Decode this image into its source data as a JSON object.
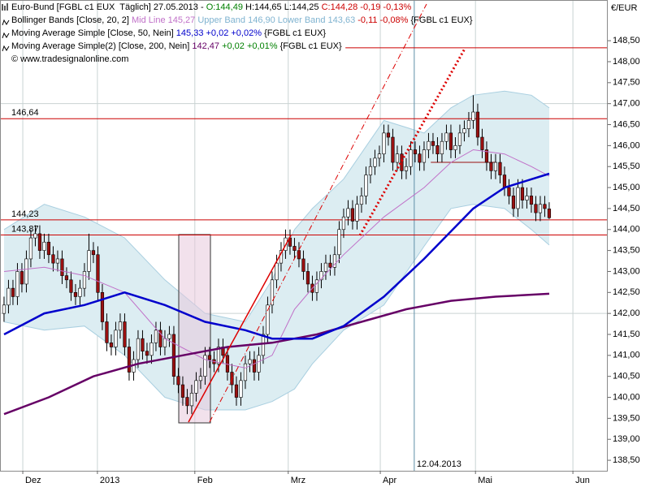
{
  "chart_data": {
    "type": "candlestick",
    "unit_label": "€/EUR",
    "xlim": [
      -0.9,
      135.1
    ],
    "ylim": [
      138.25,
      149.47
    ],
    "xticks": [
      {
        "value": 4.2,
        "label": "Dez"
      },
      {
        "value": 20.9,
        "label": "2013"
      },
      {
        "value": 42.7,
        "label": "Feb"
      },
      {
        "value": 63.6,
        "label": "Mrz"
      },
      {
        "value": 84.2,
        "label": "Apr"
      },
      {
        "value": 105.5,
        "label": "Mai"
      },
      {
        "value": 127.3,
        "label": "Jun"
      }
    ],
    "yticks": [
      {
        "value": 138.5,
        "label": "138,50"
      },
      {
        "value": 139,
        "label": "139,00"
      },
      {
        "value": 139.5,
        "label": "139,50"
      },
      {
        "value": 140,
        "label": "140,00"
      },
      {
        "value": 140.5,
        "label": "140,50"
      },
      {
        "value": 141,
        "label": "141,00"
      },
      {
        "value": 141.5,
        "label": "141,50"
      },
      {
        "value": 142,
        "label": "142,00"
      },
      {
        "value": 142.5,
        "label": "142,50"
      },
      {
        "value": 143,
        "label": "143,00"
      },
      {
        "value": 143.5,
        "label": "143,50"
      },
      {
        "value": 144,
        "label": "144,00"
      },
      {
        "value": 144.5,
        "label": "144,50"
      },
      {
        "value": 145,
        "label": "145,00"
      },
      {
        "value": 145.5,
        "label": "145,50"
      },
      {
        "value": 146,
        "label": "146,00"
      },
      {
        "value": 146.5,
        "label": "146,50"
      },
      {
        "value": 147,
        "label": "147,00"
      },
      {
        "value": 147.5,
        "label": "147,50"
      },
      {
        "value": 148,
        "label": "148,00"
      },
      {
        "value": 148.5,
        "label": "148,50"
      }
    ],
    "ygrid": [
      142,
      147
    ],
    "up_color": "#ffffff",
    "down_color": "#9a1010",
    "ohlc": [
      [
        142.0,
        142.4,
        141.8,
        142.2
      ],
      [
        142.2,
        142.8,
        142.0,
        142.6
      ],
      [
        142.6,
        142.8,
        142.2,
        142.4
      ],
      [
        142.4,
        143.2,
        142.2,
        143.0
      ],
      [
        143.0,
        143.2,
        142.5,
        142.7
      ],
      [
        142.7,
        143.5,
        142.5,
        143.3
      ],
      [
        143.3,
        144.0,
        143.1,
        143.8
      ],
      [
        143.8,
        144.1,
        143.6,
        143.9
      ],
      [
        143.9,
        144.1,
        143.3,
        143.5
      ],
      [
        143.5,
        143.9,
        143.3,
        143.7
      ],
      [
        143.7,
        143.9,
        143.2,
        143.4
      ],
      [
        143.4,
        143.6,
        143.0,
        143.2
      ],
      [
        143.2,
        143.5,
        143.0,
        143.3
      ],
      [
        143.3,
        143.5,
        142.7,
        142.9
      ],
      [
        142.9,
        143.1,
        142.6,
        142.8
      ],
      [
        142.8,
        143.0,
        142.3,
        142.5
      ],
      [
        142.5,
        142.7,
        142.2,
        142.4
      ],
      [
        142.4,
        142.8,
        142.2,
        142.6
      ],
      [
        142.6,
        143.2,
        142.4,
        143.0
      ],
      [
        143.0,
        143.9,
        142.8,
        143.5
      ],
      [
        143.5,
        143.7,
        143.2,
        143.4
      ],
      [
        143.4,
        143.6,
        142.3,
        142.5
      ],
      [
        142.5,
        142.7,
        141.6,
        141.8
      ],
      [
        141.8,
        142.0,
        141.1,
        141.3
      ],
      [
        141.3,
        141.5,
        141.0,
        141.2
      ],
      [
        141.2,
        141.8,
        141.0,
        141.6
      ],
      [
        141.6,
        142.0,
        141.4,
        141.8
      ],
      [
        141.8,
        142.0,
        141.0,
        141.2
      ],
      [
        141.2,
        141.4,
        140.4,
        140.6
      ],
      [
        140.6,
        141.1,
        140.4,
        140.9
      ],
      [
        140.9,
        141.6,
        140.7,
        141.4
      ],
      [
        141.4,
        141.6,
        140.9,
        141.1
      ],
      [
        141.1,
        141.3,
        140.8,
        141.0
      ],
      [
        141.0,
        141.5,
        140.8,
        141.3
      ],
      [
        141.3,
        141.8,
        141.1,
        141.6
      ],
      [
        141.6,
        141.8,
        141.0,
        141.2
      ],
      [
        141.2,
        141.6,
        141.0,
        141.4
      ],
      [
        141.4,
        141.7,
        141.2,
        141.5
      ],
      [
        141.5,
        141.7,
        140.3,
        140.5
      ],
      [
        140.5,
        140.7,
        140.1,
        140.3
      ],
      [
        140.3,
        140.5,
        139.8,
        140.0
      ],
      [
        140.0,
        140.2,
        139.6,
        139.8
      ],
      [
        139.8,
        140.3,
        139.6,
        140.1
      ],
      [
        140.1,
        140.6,
        139.9,
        140.4
      ],
      [
        140.4,
        140.7,
        140.2,
        140.5
      ],
      [
        140.5,
        141.2,
        140.3,
        141.0
      ],
      [
        141.0,
        141.2,
        140.7,
        140.9
      ],
      [
        140.9,
        141.1,
        140.6,
        140.8
      ],
      [
        140.8,
        141.4,
        140.6,
        141.2
      ],
      [
        141.2,
        141.4,
        140.8,
        141.0
      ],
      [
        141.0,
        141.2,
        140.4,
        140.6
      ],
      [
        140.6,
        140.8,
        140.1,
        140.3
      ],
      [
        140.3,
        140.5,
        139.8,
        140.0
      ],
      [
        140.0,
        140.6,
        139.8,
        140.4
      ],
      [
        140.4,
        141.0,
        140.2,
        140.8
      ],
      [
        140.8,
        141.1,
        140.6,
        140.9
      ],
      [
        140.9,
        141.1,
        140.4,
        140.6
      ],
      [
        140.6,
        141.2,
        140.4,
        141.0
      ],
      [
        141.0,
        141.7,
        140.8,
        141.5
      ],
      [
        141.5,
        142.4,
        141.3,
        142.2
      ],
      [
        142.2,
        143.0,
        142.0,
        142.8
      ],
      [
        142.8,
        143.4,
        142.6,
        143.2
      ],
      [
        143.2,
        143.7,
        143.0,
        143.5
      ],
      [
        143.5,
        144.0,
        143.3,
        143.8
      ],
      [
        143.8,
        144.0,
        143.4,
        143.6
      ],
      [
        143.6,
        143.8,
        143.3,
        143.5
      ],
      [
        143.5,
        143.7,
        143.1,
        143.3
      ],
      [
        143.3,
        143.5,
        142.8,
        143.0
      ],
      [
        143.0,
        143.2,
        142.5,
        142.7
      ],
      [
        142.7,
        142.9,
        142.3,
        142.5
      ],
      [
        142.5,
        143.0,
        142.3,
        142.8
      ],
      [
        142.8,
        143.2,
        142.6,
        143.0
      ],
      [
        143.0,
        143.4,
        142.8,
        143.2
      ],
      [
        143.2,
        143.4,
        142.9,
        143.1
      ],
      [
        143.1,
        143.6,
        142.9,
        143.4
      ],
      [
        143.4,
        144.2,
        143.2,
        144.0
      ],
      [
        144.0,
        144.5,
        143.8,
        144.3
      ],
      [
        144.3,
        144.7,
        144.1,
        144.5
      ],
      [
        144.5,
        144.7,
        144.0,
        144.2
      ],
      [
        144.2,
        144.8,
        144.0,
        144.6
      ],
      [
        144.6,
        145.0,
        144.4,
        144.8
      ],
      [
        144.8,
        145.5,
        144.6,
        145.3
      ],
      [
        145.3,
        145.7,
        145.1,
        145.5
      ],
      [
        145.5,
        145.9,
        145.3,
        145.7
      ],
      [
        145.7,
        146.0,
        145.5,
        145.8
      ],
      [
        145.8,
        146.5,
        145.6,
        146.3
      ],
      [
        146.3,
        146.5,
        146.0,
        146.2
      ],
      [
        146.2,
        146.4,
        145.4,
        145.6
      ],
      [
        145.6,
        146.0,
        145.4,
        145.8
      ],
      [
        145.8,
        146.0,
        145.2,
        145.4
      ],
      [
        145.4,
        145.7,
        145.2,
        145.5
      ],
      [
        145.5,
        146.1,
        145.3,
        145.9
      ],
      [
        145.9,
        146.1,
        145.6,
        145.8
      ],
      [
        145.8,
        146.0,
        145.4,
        145.6
      ],
      [
        145.6,
        146.1,
        145.4,
        145.9
      ],
      [
        145.9,
        146.3,
        145.7,
        146.1
      ],
      [
        146.1,
        146.3,
        145.8,
        146.0
      ],
      [
        146.0,
        146.2,
        145.6,
        145.8
      ],
      [
        145.8,
        146.3,
        145.6,
        146.1
      ],
      [
        146.1,
        146.5,
        145.9,
        146.3
      ],
      [
        146.3,
        146.5,
        145.7,
        145.9
      ],
      [
        145.9,
        146.2,
        145.7,
        146.0
      ],
      [
        146.0,
        146.5,
        145.8,
        146.3
      ],
      [
        146.3,
        146.6,
        146.1,
        146.4
      ],
      [
        146.4,
        146.8,
        146.2,
        146.6
      ],
      [
        146.6,
        147.2,
        146.4,
        146.8
      ],
      [
        146.8,
        147.0,
        146.0,
        146.2
      ],
      [
        146.2,
        146.4,
        145.7,
        145.9
      ],
      [
        145.9,
        146.1,
        145.4,
        145.6
      ],
      [
        145.6,
        145.8,
        145.2,
        145.4
      ],
      [
        145.4,
        145.8,
        145.2,
        145.6
      ],
      [
        145.6,
        145.8,
        145.1,
        145.3
      ],
      [
        145.3,
        145.5,
        144.8,
        145.0
      ],
      [
        145.0,
        145.2,
        144.6,
        144.8
      ],
      [
        144.8,
        145.0,
        144.3,
        144.5
      ],
      [
        144.5,
        145.2,
        144.3,
        145.0
      ],
      [
        145.0,
        145.2,
        144.5,
        144.7
      ],
      [
        144.7,
        145.0,
        144.5,
        144.8
      ],
      [
        144.8,
        145.0,
        144.4,
        144.6
      ],
      [
        144.6,
        144.8,
        144.2,
        144.4
      ],
      [
        144.4,
        144.8,
        144.2,
        144.6
      ],
      [
        144.6,
        144.8,
        144.3,
        144.5
      ],
      [
        144.49,
        144.65,
        144.25,
        144.28
      ]
    ],
    "band": {
      "fill": "#dcedf2",
      "edge": "#a9cfe0",
      "mid_color": "#c070c8",
      "x": [
        0,
        9,
        18,
        27,
        36,
        45,
        54,
        60,
        65,
        69,
        76,
        85,
        94,
        100,
        105,
        112,
        118,
        122
      ],
      "upper": [
        144.0,
        144.6,
        144.3,
        143.8,
        142.8,
        142.0,
        141.8,
        142.8,
        144.0,
        144.5,
        145.2,
        146.6,
        146.3,
        146.9,
        147.2,
        147.3,
        147.2,
        146.9
      ],
      "mid": [
        143.0,
        143.1,
        142.9,
        142.5,
        141.4,
        140.9,
        140.7,
        141.0,
        142.1,
        142.6,
        143.4,
        144.3,
        145.0,
        145.6,
        145.9,
        145.8,
        145.5,
        145.27
      ],
      "lower": [
        141.8,
        141.6,
        141.7,
        141.0,
        140.0,
        139.7,
        139.7,
        139.9,
        140.2,
        140.8,
        141.6,
        142.2,
        143.6,
        144.5,
        144.6,
        144.5,
        144.0,
        143.63
      ]
    },
    "indicators": [
      {
        "color": "#660066",
        "width": 2.5,
        "x": [
          0,
          10,
          20,
          30,
          40,
          50,
          60,
          70,
          80,
          90,
          100,
          110,
          122
        ],
        "values": [
          139.6,
          140.0,
          140.5,
          140.8,
          141.0,
          141.2,
          141.3,
          141.5,
          141.8,
          142.1,
          142.3,
          142.4,
          142.47
        ]
      },
      {
        "color": "#0000cc",
        "width": 2.5,
        "x": [
          0,
          9,
          18,
          27,
          36,
          45,
          54,
          60,
          69,
          76,
          85,
          94,
          105,
          112,
          122
        ],
        "values": [
          141.5,
          142.0,
          142.2,
          142.5,
          142.2,
          141.8,
          141.6,
          141.4,
          141.4,
          141.7,
          142.4,
          143.3,
          144.5,
          145.0,
          145.33
        ]
      }
    ],
    "hlines": [
      {
        "value": 146.64,
        "label": "146,64"
      },
      {
        "value": 144.23,
        "label": "144,23"
      },
      {
        "value": 143.87,
        "label": "143,87"
      }
    ],
    "hline_color": "#cc0000",
    "segments": [
      {
        "y": 148.33,
        "x": [
          76.4,
          135.1
        ],
        "color": "#cc0000"
      },
      {
        "y": 145.6,
        "x": [
          95.5,
          110
        ],
        "color": "#9a1010"
      }
    ],
    "vmarker": {
      "x": 91.8,
      "label": "12.04.2013",
      "color": "#5f8fa8"
    },
    "header": [
      [
        {
          "text": "Euro-Bund [FGBL c1 EUX  Täglich] 27.05.2013 - ",
          "color": "#000000"
        },
        {
          "text": "O:144,49",
          "color": "#008000"
        },
        {
          "text": " H:144,65 L:144,25 ",
          "color": "#000000"
        },
        {
          "text": "C:144,28 -0,19 -0,13%",
          "color": "#cc0000"
        }
      ],
      [
        {
          "text": "Bollinger Bands [Close, 20, 2] ",
          "color": "#000000"
        },
        {
          "text": "Mid Line 145,27 ",
          "color": "#c070c8"
        },
        {
          "text": "Upper Band 146,90 ",
          "color": "#7fb3d0"
        },
        {
          "text": "Lower Band 143,63 ",
          "color": "#7fb3d0"
        },
        {
          "text": "-0,11 -0,08% ",
          "color": "#cc0000"
        },
        {
          "text": "{FGBL c1 EUX}",
          "color": "#000000"
        }
      ],
      [
        {
          "text": "Moving Average Simple [Close, 50, Nein] ",
          "color": "#000000"
        },
        {
          "text": "145,33 +0,02 +0,02% ",
          "color": "#0000cc"
        },
        {
          "text": "{FGBL c1 EUX}",
          "color": "#000000"
        }
      ],
      [
        {
          "text": "Moving Average Simple(2) [Close, 200, Nein] ",
          "color": "#000000"
        },
        {
          "text": "142,47 ",
          "color": "#660066"
        },
        {
          "text": "+0,02 +0,01% ",
          "color": "#008000"
        },
        {
          "text": "{FGBL c1 EUX}",
          "color": "#000000"
        }
      ],
      [
        {
          "text": "© www.tradesignalonline.com",
          "color": "#000000"
        }
      ]
    ]
  }
}
